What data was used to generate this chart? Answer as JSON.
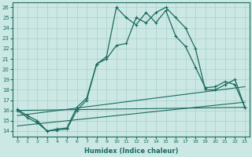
{
  "xlabel": "Humidex (Indice chaleur)",
  "xlim": [
    -0.5,
    23.5
  ],
  "ylim": [
    13.5,
    26.5
  ],
  "yticks": [
    14,
    15,
    16,
    17,
    18,
    19,
    20,
    21,
    22,
    23,
    24,
    25,
    26
  ],
  "xticks": [
    0,
    1,
    2,
    3,
    4,
    5,
    6,
    7,
    8,
    9,
    10,
    11,
    12,
    13,
    14,
    15,
    16,
    17,
    18,
    19,
    20,
    21,
    22,
    23
  ],
  "bg_color": "#cce8e4",
  "grid_color": "#aacfcb",
  "line_color": "#1a6b60",
  "curve1_x": [
    0,
    1,
    2,
    3,
    4,
    5,
    6,
    7,
    8,
    9,
    10,
    11,
    12,
    13,
    14,
    15,
    16,
    17,
    18,
    19,
    20,
    21,
    22,
    23
  ],
  "curve1_y": [
    16.1,
    15.5,
    15.0,
    14.0,
    14.2,
    14.3,
    16.3,
    17.2,
    20.5,
    21.2,
    26.0,
    25.0,
    24.3,
    25.5,
    24.5,
    25.7,
    23.2,
    22.2,
    20.2,
    18.2,
    18.3,
    18.8,
    18.5,
    16.3
  ],
  "curve2_x": [
    0,
    1,
    2,
    3,
    4,
    5,
    6,
    7,
    8,
    9,
    10,
    11,
    12,
    13,
    14,
    15,
    16,
    17,
    18,
    19,
    20,
    21,
    22,
    23
  ],
  "curve2_y": [
    16.0,
    15.3,
    14.8,
    14.0,
    14.1,
    14.2,
    16.0,
    17.0,
    20.5,
    21.0,
    22.3,
    22.5,
    25.0,
    24.5,
    25.5,
    26.0,
    25.0,
    24.0,
    22.0,
    18.0,
    18.0,
    18.5,
    19.0,
    16.3
  ],
  "line1": [
    16.0,
    16.3
  ],
  "line2": [
    15.5,
    18.3
  ],
  "line3": [
    14.5,
    16.8
  ]
}
